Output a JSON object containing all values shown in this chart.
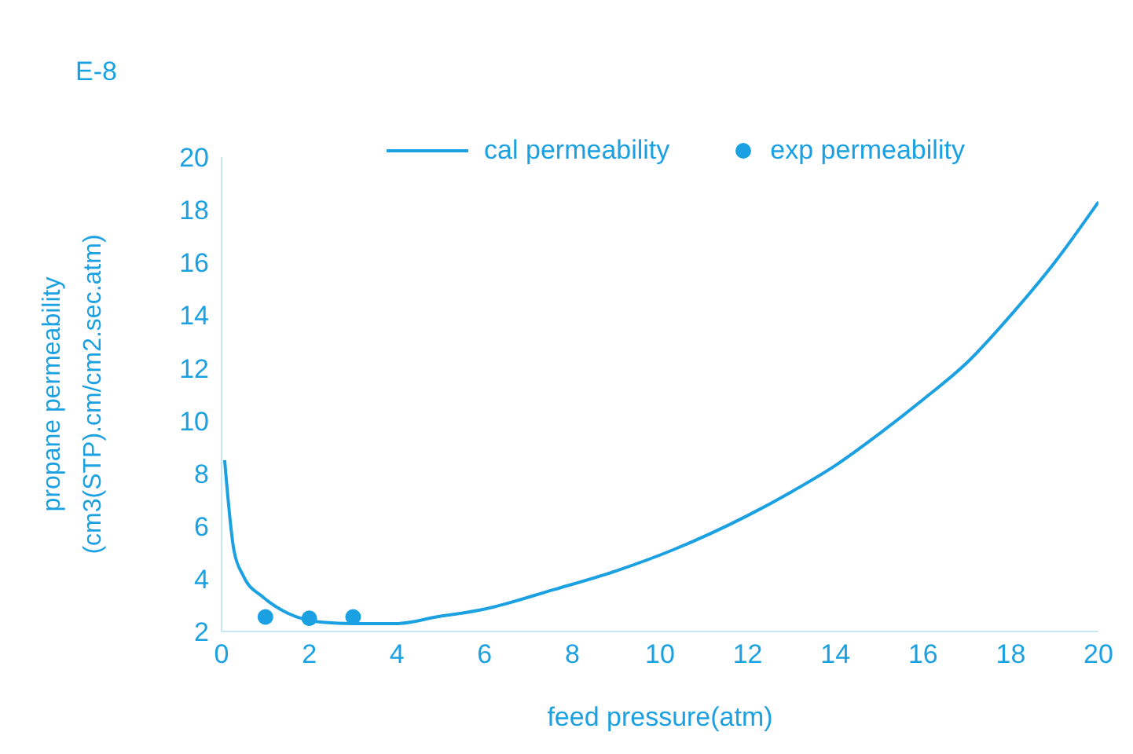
{
  "chart_data": {
    "type": "line",
    "xlabel": "feed pressure(atm)",
    "ylabel": "propane permeability\n(cm3(STP).cm/cm2.sec.atm)",
    "annotations": [
      "E-8"
    ],
    "series": [
      {
        "name": "cal permeability",
        "color": "#1ba1e2",
        "marker": "none",
        "line_style": "solid",
        "x": [
          0.07,
          0.28,
          0.5,
          0.95,
          1.5,
          2.3,
          3,
          4,
          4.9,
          6,
          7.6,
          9,
          10.3,
          12,
          13,
          14,
          15,
          16,
          17,
          18,
          19,
          20
        ],
        "values": [
          8.5,
          5.1,
          4.1,
          3.3,
          2.7,
          2.35,
          2.3,
          2.3,
          2.55,
          2.85,
          3.6,
          4.3,
          5.1,
          6.4,
          7.3,
          8.3,
          9.5,
          10.8,
          12.2,
          14.0,
          16.0,
          18.3
        ]
      },
      {
        "name": "exp permeability",
        "type": "scatter",
        "color": "#1ba1e2",
        "marker": "circle",
        "x": [
          1,
          2,
          3
        ],
        "values": [
          2.55,
          2.5,
          2.55
        ]
      }
    ],
    "xlim": [
      0,
      20
    ],
    "xticks": [
      0,
      2,
      4,
      6,
      8,
      10,
      12,
      14,
      16,
      18,
      20
    ],
    "ylim": [
      2,
      20
    ],
    "yticks": [
      2,
      4,
      6,
      8,
      10,
      12,
      14,
      16,
      18,
      20
    ],
    "grid": false,
    "legend": "top"
  }
}
